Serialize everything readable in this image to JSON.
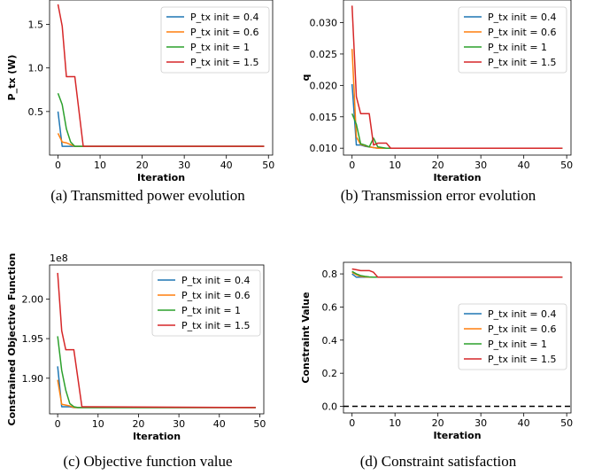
{
  "colors": {
    "series": [
      "#1f77b4",
      "#ff7f0e",
      "#2ca02c",
      "#d62728"
    ]
  },
  "chart_data": [
    {
      "type": "line",
      "caption": "(a) Transmitted power evolution",
      "xlabel": "Iteration",
      "ylabel": "P_tx (W)",
      "xlim": [
        -2,
        51
      ],
      "ylim": [
        0.0,
        1.78
      ],
      "xticks": [
        0,
        10,
        20,
        30,
        40,
        50
      ],
      "yticks": [
        0.5,
        1.0,
        1.5
      ],
      "ytick_labels": [
        "0.5",
        "1.0",
        "1.5"
      ],
      "legend": "top-right",
      "series": [
        {
          "name": "P_tx init = 0.4",
          "points": [
            [
              0,
              0.5
            ],
            [
              1,
              0.1
            ],
            [
              2,
              0.1
            ],
            [
              3,
              0.1
            ],
            [
              4,
              0.1
            ],
            [
              5,
              0.1
            ],
            [
              49,
              0.1
            ]
          ]
        },
        {
          "name": "P_tx init = 0.6",
          "points": [
            [
              0,
              0.25
            ],
            [
              1,
              0.15
            ],
            [
              2,
              0.14
            ],
            [
              3,
              0.12
            ],
            [
              4,
              0.1
            ],
            [
              5,
              0.1
            ],
            [
              49,
              0.1
            ]
          ]
        },
        {
          "name": "P_tx init = 1",
          "points": [
            [
              0,
              0.71
            ],
            [
              1,
              0.58
            ],
            [
              2,
              0.3
            ],
            [
              3,
              0.15
            ],
            [
              4,
              0.1
            ],
            [
              5,
              0.1
            ],
            [
              49,
              0.1
            ]
          ]
        },
        {
          "name": "P_tx init = 1.5",
          "points": [
            [
              0,
              1.73
            ],
            [
              1,
              1.48
            ],
            [
              2,
              0.9
            ],
            [
              3,
              0.9
            ],
            [
              4,
              0.9
            ],
            [
              5,
              0.5
            ],
            [
              6,
              0.1
            ],
            [
              7,
              0.1
            ],
            [
              49,
              0.1
            ]
          ]
        }
      ]
    },
    {
      "type": "line",
      "caption": "(b) Transmission error evolution",
      "xlabel": "Iteration",
      "ylabel": "q",
      "xlim": [
        -2,
        51
      ],
      "ylim": [
        0.0089,
        0.0336
      ],
      "xticks": [
        0,
        10,
        20,
        30,
        40,
        50
      ],
      "yticks": [
        0.01,
        0.015,
        0.02,
        0.025,
        0.03
      ],
      "ytick_labels": [
        "0.010",
        "0.015",
        "0.020",
        "0.025",
        "0.030"
      ],
      "legend": "top-right",
      "series": [
        {
          "name": "P_tx init = 0.4",
          "points": [
            [
              0,
              0.0202
            ],
            [
              1,
              0.0105
            ],
            [
              2,
              0.0105
            ],
            [
              3,
              0.0103
            ],
            [
              4,
              0.0102
            ],
            [
              5,
              0.0101
            ],
            [
              6,
              0.01
            ],
            [
              49,
              0.01
            ]
          ]
        },
        {
          "name": "P_tx init = 0.6",
          "points": [
            [
              0,
              0.0258
            ],
            [
              1,
              0.0118
            ],
            [
              2,
              0.0106
            ],
            [
              3,
              0.0104
            ],
            [
              4,
              0.0102
            ],
            [
              5,
              0.0101
            ],
            [
              6,
              0.01
            ],
            [
              49,
              0.01
            ]
          ]
        },
        {
          "name": "P_tx init = 1",
          "points": [
            [
              0,
              0.0155
            ],
            [
              1,
              0.0138
            ],
            [
              2,
              0.0107
            ],
            [
              3,
              0.0105
            ],
            [
              4,
              0.0102
            ],
            [
              5,
              0.0116
            ],
            [
              6,
              0.0102
            ],
            [
              7,
              0.0101
            ],
            [
              8,
              0.01
            ],
            [
              49,
              0.01
            ]
          ]
        },
        {
          "name": "P_tx init = 1.5",
          "points": [
            [
              0,
              0.0327
            ],
            [
              1,
              0.0182
            ],
            [
              2,
              0.0155
            ],
            [
              3,
              0.0155
            ],
            [
              4,
              0.0155
            ],
            [
              5,
              0.0105
            ],
            [
              6,
              0.0108
            ],
            [
              7,
              0.0108
            ],
            [
              8,
              0.0108
            ],
            [
              9,
              0.01
            ],
            [
              49,
              0.01
            ]
          ]
        }
      ]
    },
    {
      "type": "line",
      "caption": "(c) Objective function value",
      "xlabel": "Iteration",
      "ylabel": "Constrained Objective Function",
      "offset_text": "1e8",
      "xlim": [
        -2,
        51
      ],
      "ylim": [
        1.855,
        2.043
      ],
      "xticks": [
        0,
        10,
        20,
        30,
        40,
        50
      ],
      "yticks": [
        1.9,
        1.95,
        2.0
      ],
      "ytick_labels": [
        "1.90",
        "1.95",
        "2.00"
      ],
      "legend": "top-right",
      "series": [
        {
          "name": "P_tx init = 0.4",
          "points": [
            [
              0,
              1.915
            ],
            [
              1,
              1.864
            ],
            [
              2,
              1.864
            ],
            [
              3,
              1.864
            ],
            [
              4,
              1.863
            ],
            [
              5,
              1.863
            ],
            [
              49,
              1.863
            ]
          ]
        },
        {
          "name": "P_tx init = 0.6",
          "points": [
            [
              0,
              1.898
            ],
            [
              1,
              1.867
            ],
            [
              2,
              1.866
            ],
            [
              3,
              1.865
            ],
            [
              4,
              1.863
            ],
            [
              5,
              1.863
            ],
            [
              49,
              1.863
            ]
          ]
        },
        {
          "name": "P_tx init = 1",
          "points": [
            [
              0,
              1.953
            ],
            [
              1,
              1.91
            ],
            [
              2,
              1.885
            ],
            [
              3,
              1.868
            ],
            [
              4,
              1.864
            ],
            [
              5,
              1.863
            ],
            [
              49,
              1.863
            ]
          ]
        },
        {
          "name": "P_tx init = 1.5",
          "points": [
            [
              0,
              2.033
            ],
            [
              1,
              1.96
            ],
            [
              2,
              1.936
            ],
            [
              3,
              1.936
            ],
            [
              4,
              1.936
            ],
            [
              5,
              1.9
            ],
            [
              6,
              1.864
            ],
            [
              7,
              1.864
            ],
            [
              49,
              1.863
            ]
          ]
        }
      ]
    },
    {
      "type": "line",
      "caption": "(d) Constraint satisfaction",
      "xlabel": "Iteration",
      "ylabel": "Constraint Value",
      "xlim": [
        -2,
        51
      ],
      "ylim": [
        -0.04,
        0.87
      ],
      "xticks": [
        0,
        10,
        20,
        30,
        40,
        50
      ],
      "yticks": [
        0.0,
        0.2,
        0.4,
        0.6,
        0.8
      ],
      "ytick_labels": [
        "0.0",
        "0.2",
        "0.4",
        "0.6",
        "0.8"
      ],
      "legend": "center-right",
      "reference_line": {
        "y": 0.0,
        "style": "dashed",
        "color": "#000000"
      },
      "series": [
        {
          "name": "P_tx init = 0.4",
          "points": [
            [
              0,
              0.8
            ],
            [
              1,
              0.78
            ],
            [
              2,
              0.78
            ],
            [
              3,
              0.78
            ],
            [
              49,
              0.78
            ]
          ]
        },
        {
          "name": "P_tx init = 0.6",
          "points": [
            [
              0,
              0.81
            ],
            [
              1,
              0.795
            ],
            [
              2,
              0.785
            ],
            [
              3,
              0.782
            ],
            [
              4,
              0.78
            ],
            [
              49,
              0.78
            ]
          ]
        },
        {
          "name": "P_tx init = 1",
          "points": [
            [
              0,
              0.815
            ],
            [
              1,
              0.8
            ],
            [
              2,
              0.79
            ],
            [
              3,
              0.785
            ],
            [
              4,
              0.782
            ],
            [
              5,
              0.78
            ],
            [
              49,
              0.78
            ]
          ]
        },
        {
          "name": "P_tx init = 1.5",
          "points": [
            [
              0,
              0.83
            ],
            [
              1,
              0.825
            ],
            [
              2,
              0.82
            ],
            [
              3,
              0.82
            ],
            [
              4,
              0.82
            ],
            [
              5,
              0.81
            ],
            [
              6,
              0.78
            ],
            [
              49,
              0.78
            ]
          ]
        }
      ]
    }
  ]
}
